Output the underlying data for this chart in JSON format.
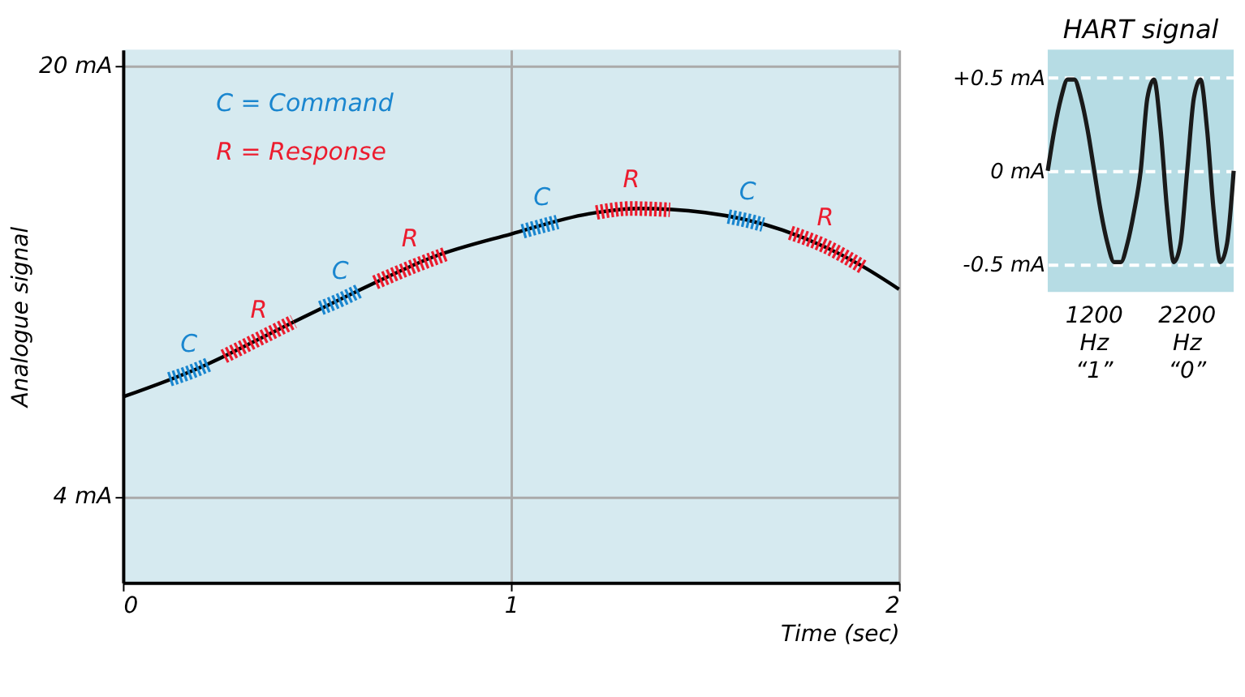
{
  "chart_data": [
    {
      "type": "line",
      "xlabel": "Time (sec)",
      "ylabel": "Analogue signal",
      "xlim": [
        0,
        2
      ],
      "xticks": [
        0,
        1,
        2
      ],
      "ylim": [
        0.8,
        20.6
      ],
      "yticks": [
        {
          "value": 4,
          "label": "4 mA"
        },
        {
          "value": 20,
          "label": "20 mA"
        }
      ],
      "grid": true,
      "legend": "top left",
      "series": [
        {
          "color": "#000000",
          "x": [
            0,
            0.2,
            0.4,
            0.6,
            0.8,
            1.0,
            1.2,
            1.33,
            1.5,
            1.7,
            1.9,
            2.0
          ],
          "values": [
            7.7,
            8.8,
            10.2,
            11.6,
            12.9,
            13.75,
            14.5,
            14.7,
            14.55,
            13.9,
            12.6,
            11.7
          ]
        },
        {
          "name": "C = Command",
          "color": "#1a86cf",
          "line_style": "dashed",
          "x": [
            0.12,
            0.17,
            0.22,
            0.24,
            0.51,
            0.56,
            0.61,
            0.63,
            1.03,
            1.08,
            1.12,
            1.14,
            1.56,
            1.61,
            1.65
          ],
          "values": [
            8.35,
            8.6,
            8.9,
            null,
            11.0,
            11.3,
            11.65,
            null,
            13.85,
            14.05,
            14.2,
            null,
            14.4,
            14.25,
            14.1
          ]
        },
        {
          "name": "R = Response",
          "color": "#ec1c2e",
          "line_style": "dashed",
          "x": [
            0.26,
            0.35,
            0.44,
            0.46,
            0.65,
            0.74,
            0.83,
            0.85,
            1.22,
            1.31,
            1.41,
            1.43,
            1.72,
            1.81,
            1.91
          ],
          "values": [
            9.2,
            9.85,
            10.5,
            null,
            11.95,
            12.5,
            13.0,
            null,
            14.55,
            14.7,
            14.65,
            null,
            13.8,
            13.3,
            12.5
          ]
        }
      ],
      "annotations": [
        {
          "text": "C",
          "x": 0.17,
          "y": 8.6
        },
        {
          "text": "R",
          "x": 0.35,
          "y": 9.85
        },
        {
          "text": "C",
          "x": 0.56,
          "y": 11.3
        },
        {
          "text": "R",
          "x": 0.74,
          "y": 12.5
        },
        {
          "text": "C",
          "x": 1.08,
          "y": 14.05
        },
        {
          "text": "R",
          "x": 1.31,
          "y": 14.7
        },
        {
          "text": "C",
          "x": 1.61,
          "y": 14.25
        },
        {
          "text": "R",
          "x": 1.81,
          "y": 13.3
        }
      ]
    },
    {
      "type": "line",
      "title": "HART signal",
      "ylim": [
        -0.65,
        0.65
      ],
      "yticks": [
        {
          "value": 0.5,
          "label": "+0.5 mA"
        },
        {
          "value": 0,
          "label": "0 mA"
        },
        {
          "value": -0.5,
          "label": "-0.5 mA"
        }
      ],
      "grid": "y",
      "categories": [
        null,
        null,
        null,
        null,
        null,
        null,
        null,
        null,
        null,
        null,
        null,
        null,
        null,
        null,
        null,
        null,
        null,
        null,
        null,
        null,
        null,
        null,
        null,
        null,
        null,
        null,
        null,
        null,
        null
      ],
      "series": [
        {
          "color": "#1a1a1a",
          "values": [
            0,
            0.22,
            0.39,
            0.49,
            0.49,
            0.39,
            0.22,
            0,
            -0.22,
            -0.39,
            -0.49,
            -0.49,
            -0.39,
            -0.22,
            0,
            0.39,
            0.49,
            0.22,
            -0.22,
            -0.49,
            -0.39,
            0,
            0.39,
            0.49,
            0.22,
            -0.22,
            -0.49,
            -0.39,
            0
          ]
        }
      ],
      "annotations": [
        "1200 Hz “1”",
        "2200 Hz “0”"
      ]
    }
  ]
}
